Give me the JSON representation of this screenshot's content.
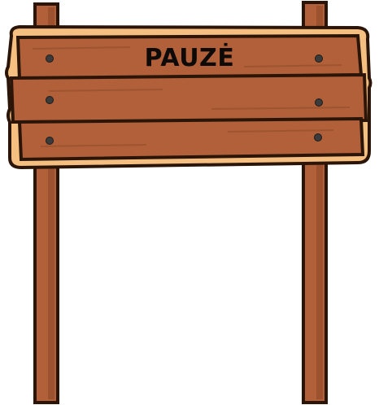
{
  "sign": {
    "title": "PAUZĖ"
  },
  "colors": {
    "wood": "#b1603a",
    "wood_dark": "#8a4626",
    "outline": "#2b1508",
    "border": "#f4bf80",
    "nail": "#3b3b3b"
  }
}
